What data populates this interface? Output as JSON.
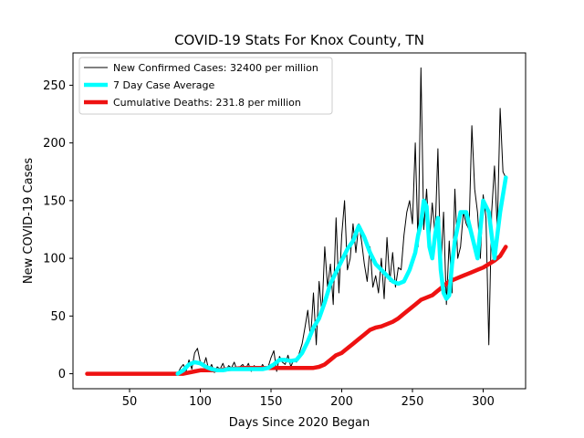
{
  "chart_data": {
    "type": "line",
    "title": "COVID-19 Stats For Knox County, TN",
    "xlabel": "Days Since 2020 Began",
    "ylabel": "New COVID-19 Cases",
    "xlim": [
      10,
      330
    ],
    "ylim": [
      -13,
      278
    ],
    "xticks": [
      50,
      100,
      150,
      200,
      250,
      300
    ],
    "yticks": [
      0,
      50,
      100,
      150,
      200,
      250
    ],
    "grid": false,
    "legend_position": "top-left",
    "series": [
      {
        "name": "New Confirmed Cases: 32400 per million",
        "color": "#000000",
        "style": "thin",
        "x": [
          84,
          86,
          88,
          90,
          92,
          94,
          96,
          98,
          100,
          102,
          104,
          106,
          108,
          110,
          112,
          114,
          116,
          118,
          120,
          122,
          124,
          126,
          128,
          130,
          132,
          134,
          136,
          138,
          140,
          142,
          144,
          146,
          148,
          150,
          152,
          154,
          156,
          158,
          160,
          162,
          164,
          166,
          168,
          170,
          172,
          174,
          176,
          178,
          180,
          182,
          184,
          186,
          188,
          190,
          192,
          194,
          196,
          198,
          200,
          202,
          204,
          206,
          208,
          210,
          212,
          214,
          216,
          218,
          220,
          222,
          224,
          226,
          228,
          230,
          232,
          234,
          236,
          238,
          240,
          242,
          244,
          246,
          248,
          250,
          252,
          254,
          256,
          258,
          260,
          262,
          264,
          266,
          268,
          270,
          272,
          274,
          276,
          278,
          280,
          282,
          284,
          286,
          288,
          290,
          292,
          294,
          296,
          298,
          300,
          302,
          304,
          306,
          308,
          310,
          312,
          314,
          316
        ],
        "y": [
          0,
          5,
          8,
          2,
          12,
          4,
          18,
          22,
          10,
          6,
          14,
          3,
          8,
          1,
          6,
          4,
          9,
          2,
          7,
          5,
          10,
          3,
          6,
          8,
          4,
          9,
          2,
          7,
          5,
          3,
          8,
          4,
          6,
          14,
          20,
          2,
          15,
          10,
          8,
          16,
          6,
          12,
          10,
          18,
          26,
          40,
          55,
          30,
          70,
          25,
          80,
          52,
          110,
          75,
          95,
          60,
          135,
          70,
          120,
          150,
          90,
          100,
          130,
          105,
          130,
          115,
          95,
          80,
          110,
          75,
          85,
          70,
          100,
          65,
          118,
          80,
          105,
          75,
          92,
          90,
          120,
          140,
          150,
          130,
          200,
          110,
          265,
          125,
          160,
          115,
          148,
          120,
          195,
          90,
          140,
          60,
          115,
          70,
          160,
          100,
          110,
          140,
          130,
          125,
          215,
          160,
          140,
          100,
          155,
          135,
          25,
          140,
          180,
          125,
          230,
          175,
          170
        ]
      },
      {
        "name": "7 Day Case Average",
        "color": "#00FFFF",
        "style": "thick",
        "x": [
          84,
          88,
          92,
          96,
          100,
          104,
          108,
          112,
          116,
          120,
          124,
          128,
          132,
          136,
          140,
          144,
          148,
          152,
          156,
          160,
          164,
          168,
          172,
          176,
          180,
          184,
          188,
          192,
          196,
          200,
          204,
          208,
          212,
          216,
          220,
          224,
          228,
          232,
          236,
          240,
          244,
          248,
          252,
          254,
          256,
          258,
          260,
          262,
          264,
          266,
          268,
          270,
          272,
          274,
          276,
          278,
          280,
          284,
          288,
          292,
          296,
          300,
          304,
          308,
          312,
          316
        ],
        "y": [
          0,
          3,
          8,
          10,
          9,
          6,
          4,
          3,
          3,
          4,
          4,
          4,
          4,
          4,
          4,
          4,
          5,
          8,
          12,
          12,
          11,
          12,
          18,
          28,
          40,
          48,
          62,
          78,
          88,
          98,
          108,
          115,
          128,
          118,
          105,
          95,
          90,
          85,
          80,
          78,
          80,
          90,
          105,
          120,
          130,
          150,
          145,
          110,
          100,
          120,
          135,
          90,
          70,
          65,
          68,
          95,
          115,
          140,
          140,
          120,
          100,
          150,
          140,
          100,
          140,
          170
        ]
      },
      {
        "name": "Cumulative Deaths: 231.8 per million",
        "color": "#EE1111",
        "style": "thick",
        "x": [
          20,
          40,
          60,
          80,
          88,
          92,
          96,
          100,
          110,
          120,
          130,
          140,
          150,
          160,
          170,
          180,
          184,
          188,
          192,
          196,
          200,
          204,
          208,
          212,
          216,
          220,
          224,
          228,
          232,
          236,
          240,
          244,
          248,
          252,
          256,
          260,
          264,
          268,
          272,
          276,
          280,
          284,
          288,
          292,
          296,
          300,
          304,
          308,
          312,
          316
        ],
        "y": [
          0,
          0,
          0,
          0,
          0,
          1,
          2,
          3,
          3,
          4,
          5,
          5,
          5,
          5,
          5,
          5,
          6,
          8,
          12,
          16,
          18,
          22,
          26,
          30,
          34,
          38,
          40,
          41,
          43,
          45,
          48,
          52,
          56,
          60,
          64,
          66,
          68,
          72,
          76,
          80,
          82,
          84,
          86,
          88,
          90,
          92,
          95,
          98,
          102,
          110
        ]
      }
    ]
  }
}
